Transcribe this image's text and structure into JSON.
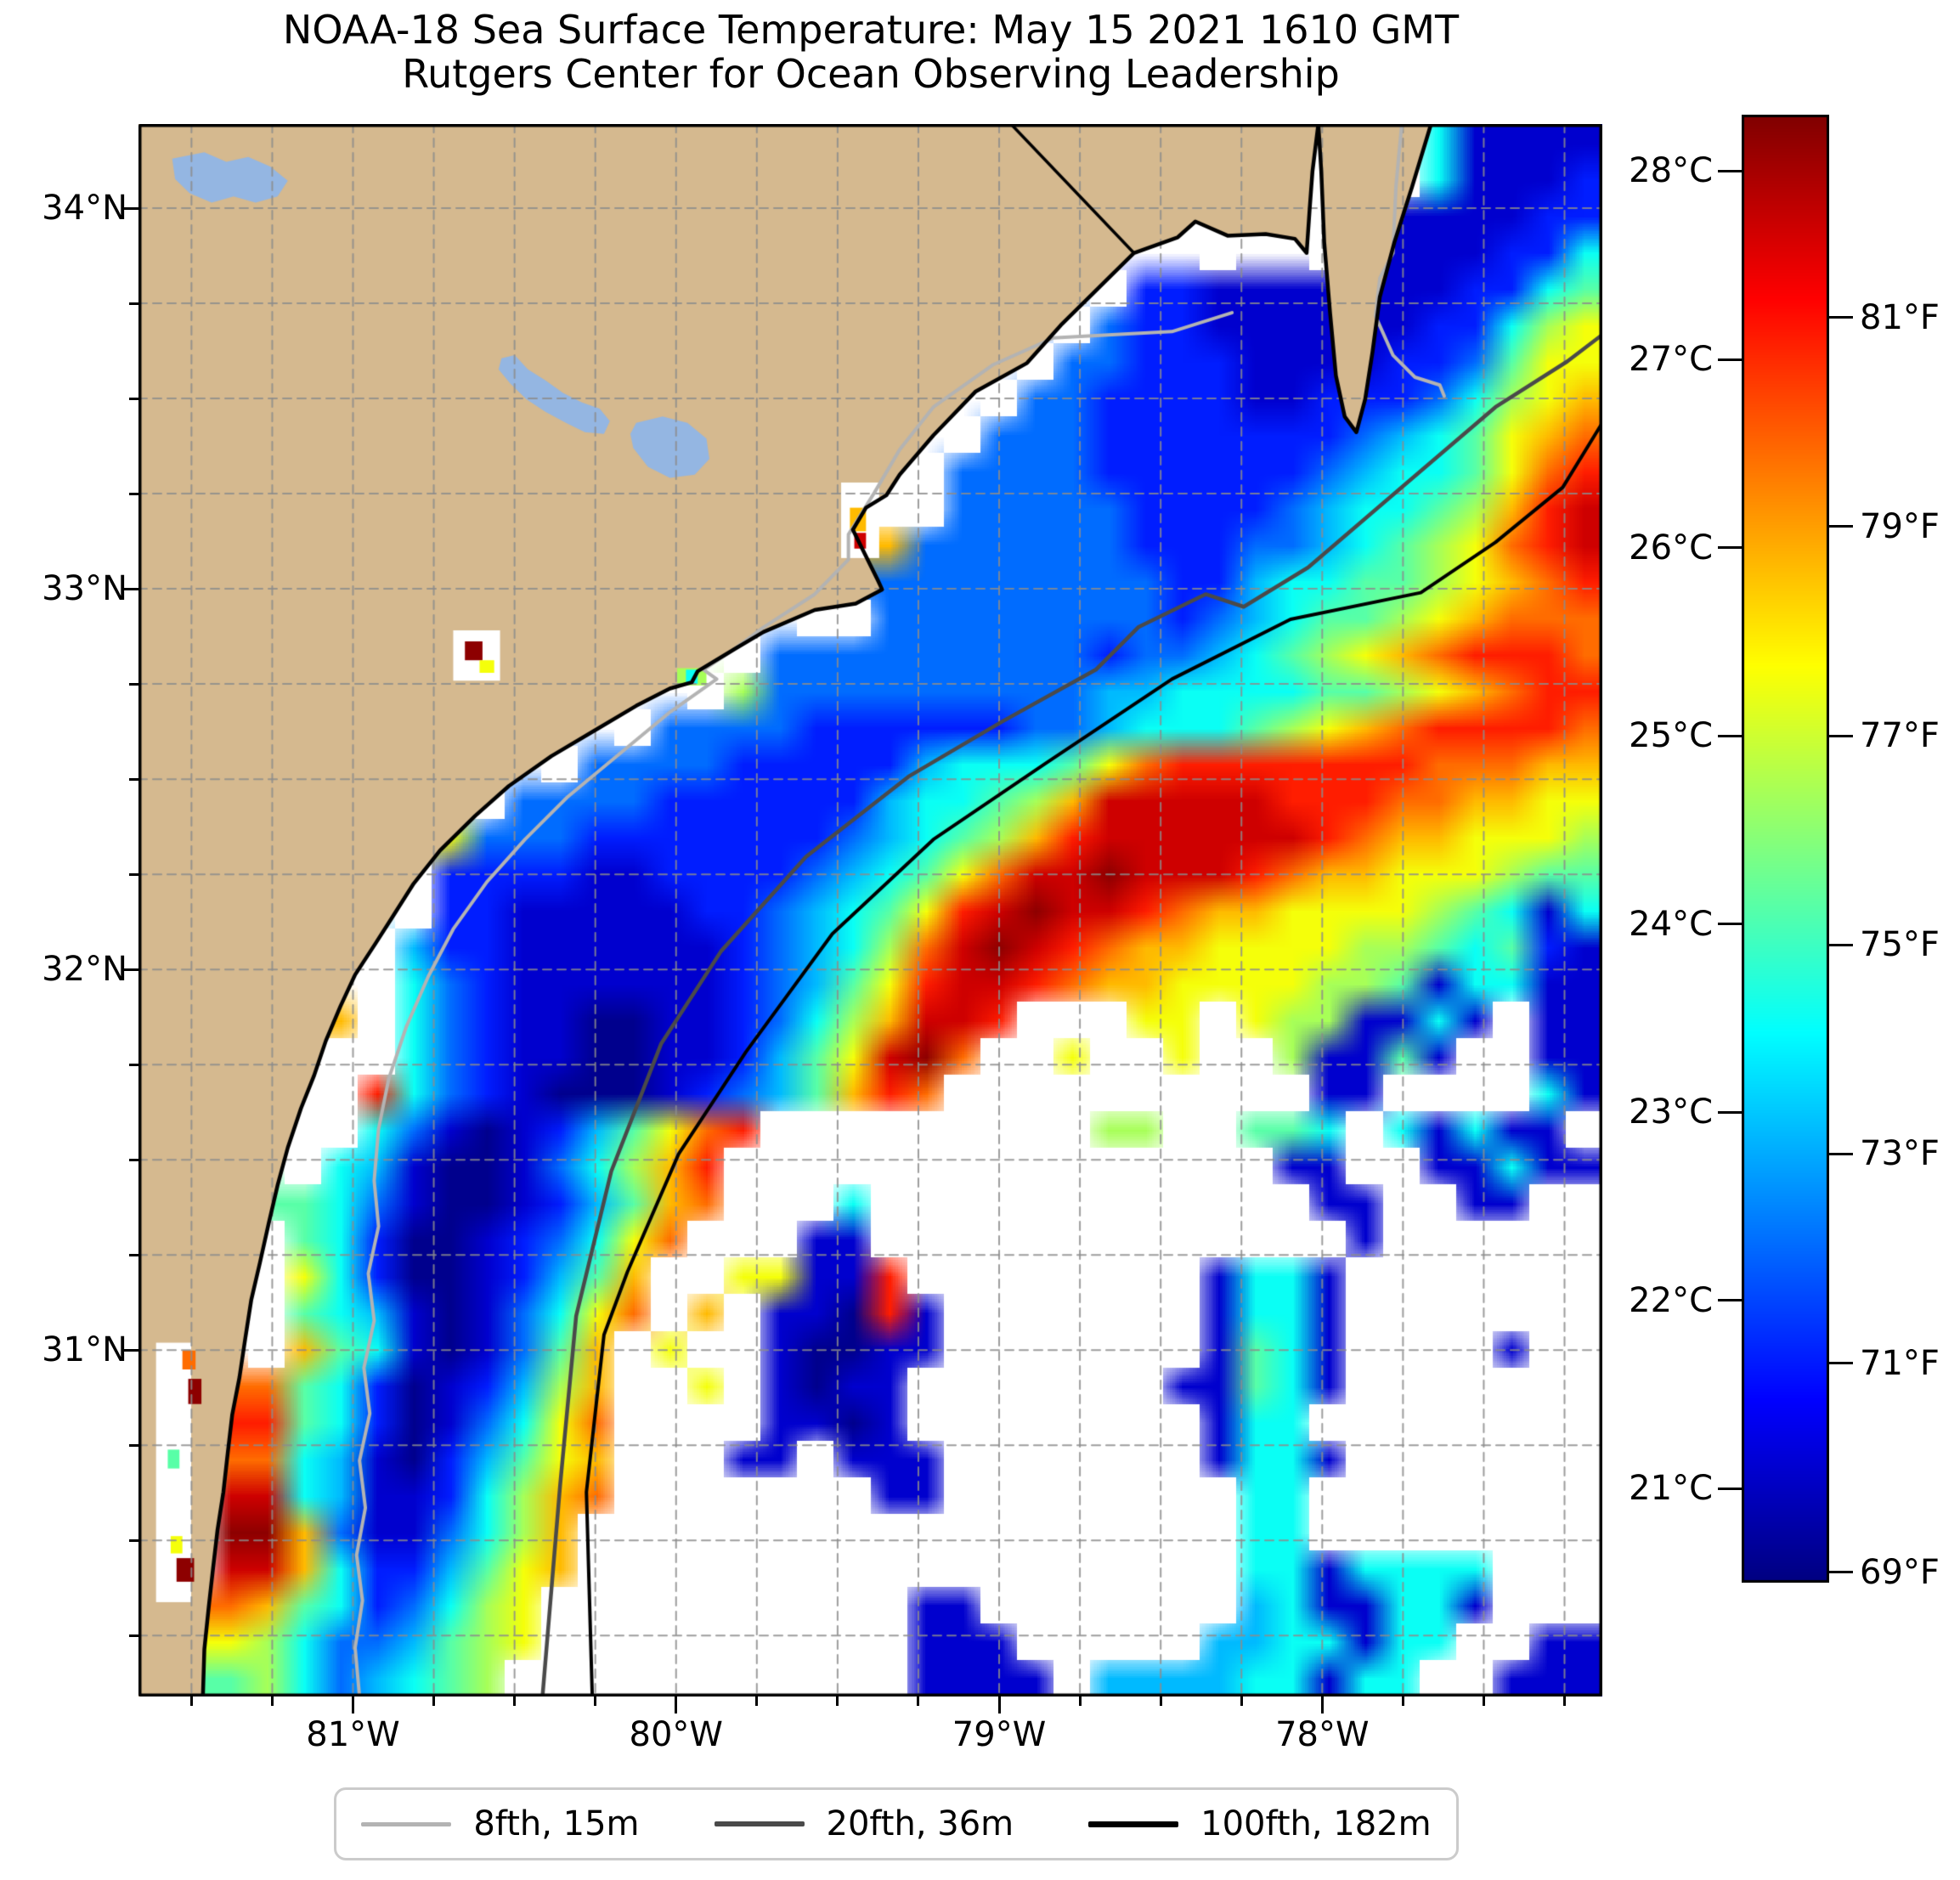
{
  "chart_data": {
    "type": "heatmap",
    "title": "NOAA-18 Sea Surface Temperature: May 15 2021 1610 GMT",
    "subtitle": "Rutgers Center for Ocean Observing Leadership",
    "x_axis": {
      "range_lon_w": [
        81.664,
        77.133
      ],
      "minor_step": 0.25,
      "ticks": [
        {
          "lon": 81,
          "label": "81°W"
        },
        {
          "lon": 80,
          "label": "80°W"
        },
        {
          "lon": 79,
          "label": "79°W"
        },
        {
          "lon": 78,
          "label": "78°W"
        }
      ]
    },
    "y_axis": {
      "range_lat_n": [
        30.09,
        34.221
      ],
      "minor_step": 0.25,
      "ticks": [
        {
          "lat": 34,
          "label": "34°N"
        },
        {
          "lat": 33,
          "label": "33°N"
        },
        {
          "lat": 32,
          "label": "32°N"
        },
        {
          "lat": 31,
          "label": "31°N"
        }
      ]
    },
    "colorbar": {
      "colormap": "jet",
      "range_c": [
        20.5,
        28.3
      ],
      "c_ticks": [
        {
          "c": 28,
          "label": "28°C"
        },
        {
          "c": 27,
          "label": "27°C"
        },
        {
          "c": 26,
          "label": "26°C"
        },
        {
          "c": 25,
          "label": "25°C"
        },
        {
          "c": 24,
          "label": "24°C"
        },
        {
          "c": 23,
          "label": "23°C"
        },
        {
          "c": 22,
          "label": "22°C"
        },
        {
          "c": 21,
          "label": "21°C"
        }
      ],
      "f_ticks": [
        {
          "f": 81,
          "label": "81°F"
        },
        {
          "f": 79,
          "label": "79°F"
        },
        {
          "f": 77,
          "label": "77°F"
        },
        {
          "f": 75,
          "label": "75°F"
        },
        {
          "f": 73,
          "label": "73°F"
        },
        {
          "f": 71,
          "label": "71°F"
        },
        {
          "f": 69,
          "label": "69°F"
        }
      ]
    },
    "legend": {
      "items": [
        {
          "label": "8fth, 15m",
          "color": "#b3b3b3",
          "thickness": 5
        },
        {
          "label": "20fth, 36m",
          "color": "#4a4a4a",
          "thickness": 6
        },
        {
          "label": "100fth, 182m",
          "color": "#000000",
          "thickness": 7
        }
      ]
    },
    "map_colors": {
      "land": "#d5b98f",
      "lake": "#94b6e2",
      "cloud": "#ffffff",
      "gridline": "#8c8c8c",
      "coast": "#000000",
      "contour_8fth": "#b3b3b3",
      "contour_20fth": "#4a4a4a",
      "contour_100fth": "#000000"
    },
    "sst_grid": {
      "cols": 40,
      "rows": 43,
      "codes": {
        "0": 20.6,
        "1": 21.1,
        "2": 21.7,
        "3": 22.3,
        "4": 22.9,
        "5": 23.5,
        "6": 24.1,
        "7": 24.7,
        "8": 25.3,
        "9": 25.9,
        "a": 26.5,
        "b": 27.1,
        "c": 27.7,
        "d": 28.2
      },
      "legend_codes": {
        "L": "land",
        "W": "cloud/no-data"
      },
      "rows_data": [
        "LLLLLLLLLLLLLLLLLLLLLLLLLLLLLLLLWLW51111",
        "LLLLLLLLLLLLLLLLLLLLLLLLLLLLLLLLWLW51112",
        "LLLLLLLLLLLLLLLLLLLLLLLLLLLLLLLLWL111122",
        "LLLLLLLLLLLLLLLLLLLLLLLLLLLLLWLLW1111225",
        "LLLLLLLLLLLLLLLLLLLLLLLLLLW2211111112256",
        "LLLLLLLLLLLLLLLLLLLLLLLLLW32211111122578",
        "LLLLLLLLLLLLLLLLLLLLLLLLW332221111223688",
        "LLLLLLLLLLLLLLLLLLLLLLLW3322221122235789",
        "LLLLLLLLLLLLLLLLLLLLLLW3332222222345689a",
        "LLLLLLLLLLLLLLLLLLLLLW3333222222345568ab",
        "LLLLLLLLLLLLLLLLLLLLWW3333322223455679bc",
        "LLLLLLLLLLLLLLLLLLLL93333332223345678abc",
        "LLLLLLLLLLLLLLLLLLLL333333332245566789ab",
        "LLLLLLLLLLLLLLLLLLWW33333333234566789aaa",
        "LLLLLLLLLWdLLLLLW333333333233456789abbba",
        "LLLLLLLLLLLLLLLW733333333344555566789abb",
        "LLLLLLLLLLLLLW33332222223345556789abbbba",
        "LLLLLLLLLLLW333322222455568abbbbbbbaaa99",
        "LLLLLLLLLW3333222222455679cccccbbbaa9988",
        "LLLLLLLL83332222222345679bccccccba998887",
        "LLLLLLLW222211222234568accdcccba99888766",
        "LLLLLLLW22111112234568bcdccba99888876515",
        "LLLLLLW42211111123457acdcba9988887765621",
        "LLLLLLW532111111234",
        "LLLLL9W53211001123579ccbWWW88W8771151W11",
        "LdLLLWW5321100112468cdaWW8WW8WW71161WW11",
        "LLLLLWb5321000123469baWWWWWWWWWW11WWWW51",
        "LLLLWW531012468abWWWWWWWWW77WW665W51511W",
        "LLLLW5410013579bWWWWWWWWWWWWWWW11WW11511",
        "LLLL65310012469aWWW5WWWWWWWWWWWW11WW11WW",
        "LLLW6520012358aWWW11WWWWWWWWWWWWW1WWWWWW",
        "LLLW8520012469WW8811bWWWWWWWW1551WWWWWWW",
        "LLLW654101358aW9W110b1WWWWWWW1551WWWWWWW",
        "LLLW965101369W8WW10011WWWWWWW1651WWWW1WW",
        "LdLa652012479WW8W1011WWWWWWW11651WWWWWWW",
        "LdLb65201358aWWWW1101WWWWWWWW155WWWWWWWW",
        "L6La541024689WWW11W111WWWWWWW1551WWWWWWW",
        "LWLc54112579aWWWWWWW11WWWWWWWW55WWWWWWWW",
        "LWLd93113579WWWWWWWWWWWWWWWWWW55WWWWWWWW",
        "LWLc95224689WWWWWWWWWWWWWWWWWW5515555WWW",
        "LLa96523578WWWWWWWWWW11WWWWWWW4511551WWW",
        "LL875334678WWWWWWWWWW111WWWWW4455155WW11",
        "LL67534567WWWWWWWWWWW1111W444455155WW111"
      ],
      "row23_tail": "68bccba99888877615511"
    },
    "overlays": {
      "coastline_main": [
        [
          0.806,
          0.0
        ],
        [
          0.802,
          0.03
        ],
        [
          0.8,
          0.055
        ],
        [
          0.798,
          0.082
        ],
        [
          0.79,
          0.073
        ],
        [
          0.77,
          0.07
        ],
        [
          0.744,
          0.071
        ],
        [
          0.722,
          0.062
        ],
        [
          0.71,
          0.072
        ],
        [
          0.68,
          0.082
        ],
        [
          0.655,
          0.105
        ],
        [
          0.63,
          0.128
        ],
        [
          0.607,
          0.152
        ],
        [
          0.572,
          0.17
        ],
        [
          0.543,
          0.198
        ],
        [
          0.52,
          0.223
        ],
        [
          0.511,
          0.236
        ],
        [
          0.497,
          0.244
        ],
        [
          0.488,
          0.258
        ],
        [
          0.505,
          0.29
        ],
        [
          0.508,
          0.296
        ],
        [
          0.49,
          0.305
        ],
        [
          0.462,
          0.309
        ],
        [
          0.427,
          0.323
        ],
        [
          0.407,
          0.334
        ],
        [
          0.382,
          0.348
        ],
        [
          0.378,
          0.355
        ],
        [
          0.363,
          0.359
        ],
        [
          0.34,
          0.37
        ],
        [
          0.311,
          0.386
        ],
        [
          0.282,
          0.402
        ],
        [
          0.253,
          0.421
        ],
        [
          0.23,
          0.44
        ],
        [
          0.206,
          0.462
        ],
        [
          0.188,
          0.483
        ],
        [
          0.173,
          0.505
        ],
        [
          0.162,
          0.521
        ],
        [
          0.148,
          0.541
        ],
        [
          0.138,
          0.561
        ],
        [
          0.128,
          0.583
        ],
        [
          0.12,
          0.605
        ],
        [
          0.111,
          0.626
        ],
        [
          0.102,
          0.651
        ],
        [
          0.095,
          0.675
        ],
        [
          0.089,
          0.699
        ],
        [
          0.083,
          0.724
        ],
        [
          0.077,
          0.748
        ],
        [
          0.073,
          0.772
        ],
        [
          0.069,
          0.797
        ],
        [
          0.064,
          0.821
        ],
        [
          0.061,
          0.845
        ],
        [
          0.058,
          0.87
        ],
        [
          0.054,
          0.894
        ],
        [
          0.051,
          0.918
        ],
        [
          0.048,
          0.943
        ],
        [
          0.045,
          0.97
        ],
        [
          0.044,
          1.0
        ]
      ],
      "cape_peninsula": [
        [
          0.883,
          0.0
        ],
        [
          0.87,
          0.04
        ],
        [
          0.858,
          0.075
        ],
        [
          0.848,
          0.11
        ],
        [
          0.843,
          0.145
        ],
        [
          0.838,
          0.175
        ],
        [
          0.832,
          0.196
        ],
        [
          0.824,
          0.186
        ],
        [
          0.818,
          0.16
        ],
        [
          0.814,
          0.12
        ],
        [
          0.81,
          0.075
        ],
        [
          0.808,
          0.03
        ],
        [
          0.806,
          0.0
        ]
      ],
      "state_line": [
        [
          0.596,
          0.0
        ],
        [
          0.68,
          0.082
        ]
      ],
      "contour_8fth_hook": [
        [
          0.863,
          0.0
        ],
        [
          0.859,
          0.04
        ],
        [
          0.857,
          0.082
        ],
        [
          0.848,
          0.098
        ],
        [
          0.845,
          0.122
        ],
        [
          0.857,
          0.147
        ],
        [
          0.872,
          0.161
        ],
        [
          0.889,
          0.166
        ],
        [
          0.892,
          0.173
        ]
      ],
      "contour_8fth": [
        [
          0.747,
          0.12
        ],
        [
          0.706,
          0.132
        ],
        [
          0.665,
          0.134
        ],
        [
          0.625,
          0.136
        ],
        [
          0.584,
          0.153
        ],
        [
          0.543,
          0.18
        ],
        [
          0.52,
          0.207
        ],
        [
          0.503,
          0.234
        ],
        [
          0.485,
          0.261
        ],
        [
          0.485,
          0.277
        ],
        [
          0.462,
          0.299
        ],
        [
          0.427,
          0.32
        ],
        [
          0.404,
          0.336
        ],
        [
          0.386,
          0.347
        ],
        [
          0.395,
          0.353
        ],
        [
          0.363,
          0.374
        ],
        [
          0.328,
          0.401
        ],
        [
          0.293,
          0.428
        ],
        [
          0.264,
          0.455
        ],
        [
          0.238,
          0.482
        ],
        [
          0.215,
          0.512
        ],
        [
          0.198,
          0.542
        ],
        [
          0.183,
          0.574
        ],
        [
          0.171,
          0.607
        ],
        [
          0.164,
          0.639
        ],
        [
          0.161,
          0.672
        ],
        [
          0.164,
          0.701
        ],
        [
          0.157,
          0.731
        ],
        [
          0.161,
          0.761
        ],
        [
          0.154,
          0.791
        ],
        [
          0.158,
          0.82
        ],
        [
          0.151,
          0.85
        ],
        [
          0.155,
          0.88
        ],
        [
          0.149,
          0.91
        ],
        [
          0.153,
          0.939
        ],
        [
          0.148,
          0.969
        ],
        [
          0.151,
          1.0
        ]
      ],
      "contour_20fth": [
        [
          0.276,
          1.0
        ],
        [
          0.288,
          0.866
        ],
        [
          0.299,
          0.758
        ],
        [
          0.323,
          0.666
        ],
        [
          0.357,
          0.585
        ],
        [
          0.398,
          0.526
        ],
        [
          0.456,
          0.466
        ],
        [
          0.526,
          0.415
        ],
        [
          0.59,
          0.38
        ],
        [
          0.654,
          0.347
        ],
        [
          0.683,
          0.32
        ],
        [
          0.729,
          0.299
        ],
        [
          0.755,
          0.307
        ],
        [
          0.799,
          0.282
        ],
        [
          0.863,
          0.231
        ],
        [
          0.927,
          0.18
        ],
        [
          0.976,
          0.151
        ],
        [
          1.0,
          0.134
        ]
      ],
      "contour_100fth": [
        [
          0.31,
          1.0
        ],
        [
          0.306,
          0.87
        ],
        [
          0.318,
          0.77
        ],
        [
          0.334,
          0.73
        ],
        [
          0.369,
          0.655
        ],
        [
          0.415,
          0.59
        ],
        [
          0.474,
          0.515
        ],
        [
          0.543,
          0.455
        ],
        [
          0.619,
          0.407
        ],
        [
          0.706,
          0.353
        ],
        [
          0.787,
          0.315
        ],
        [
          0.876,
          0.298
        ],
        [
          0.927,
          0.266
        ],
        [
          0.973,
          0.231
        ],
        [
          1.0,
          0.19
        ]
      ],
      "lakes": [
        [
          [
            0.023,
            0.022
          ],
          [
            0.045,
            0.018
          ],
          [
            0.06,
            0.024
          ],
          [
            0.075,
            0.021
          ],
          [
            0.09,
            0.027
          ],
          [
            0.102,
            0.036
          ],
          [
            0.095,
            0.046
          ],
          [
            0.08,
            0.05
          ],
          [
            0.065,
            0.046
          ],
          [
            0.05,
            0.05
          ],
          [
            0.035,
            0.044
          ],
          [
            0.025,
            0.035
          ]
        ],
        [
          [
            0.248,
            0.149
          ],
          [
            0.257,
            0.147
          ],
          [
            0.266,
            0.156
          ],
          [
            0.278,
            0.163
          ],
          [
            0.29,
            0.171
          ],
          [
            0.303,
            0.177
          ],
          [
            0.315,
            0.181
          ],
          [
            0.322,
            0.189
          ],
          [
            0.318,
            0.197
          ],
          [
            0.305,
            0.196
          ],
          [
            0.292,
            0.19
          ],
          [
            0.278,
            0.183
          ],
          [
            0.265,
            0.175
          ],
          [
            0.254,
            0.165
          ],
          [
            0.246,
            0.156
          ]
        ],
        [
          [
            0.34,
            0.19
          ],
          [
            0.358,
            0.186
          ],
          [
            0.375,
            0.19
          ],
          [
            0.388,
            0.2
          ],
          [
            0.39,
            0.213
          ],
          [
            0.38,
            0.223
          ],
          [
            0.363,
            0.225
          ],
          [
            0.348,
            0.218
          ],
          [
            0.338,
            0.206
          ],
          [
            0.336,
            0.197
          ]
        ]
      ],
      "inland_patches": [
        {
          "u": 0.012,
          "v": 0.775,
          "w": 0.024,
          "h": 0.165,
          "code": "W"
        },
        {
          "u": 0.03,
          "v": 0.78,
          "w": 0.009,
          "h": 0.012,
          "code": "a"
        },
        {
          "u": 0.034,
          "v": 0.798,
          "w": 0.009,
          "h": 0.016,
          "code": "d"
        },
        {
          "u": 0.022,
          "v": 0.898,
          "w": 0.008,
          "h": 0.011,
          "code": "8"
        },
        {
          "u": 0.026,
          "v": 0.912,
          "w": 0.012,
          "h": 0.015,
          "code": "d"
        },
        {
          "u": 0.02,
          "v": 0.843,
          "w": 0.008,
          "h": 0.012,
          "code": "6"
        },
        {
          "u": 0.215,
          "v": 0.322,
          "w": 0.032,
          "h": 0.032,
          "code": "W"
        },
        {
          "u": 0.223,
          "v": 0.329,
          "w": 0.012,
          "h": 0.012,
          "code": "d"
        },
        {
          "u": 0.233,
          "v": 0.341,
          "w": 0.01,
          "h": 0.008,
          "code": "8"
        },
        {
          "u": 0.48,
          "v": 0.228,
          "w": 0.026,
          "h": 0.048,
          "code": "W"
        },
        {
          "u": 0.486,
          "v": 0.244,
          "w": 0.011,
          "h": 0.015,
          "code": "9"
        },
        {
          "u": 0.489,
          "v": 0.26,
          "w": 0.008,
          "h": 0.01,
          "code": "c"
        },
        {
          "u": 0.368,
          "v": 0.346,
          "w": 0.02,
          "h": 0.011,
          "code": "7"
        },
        {
          "u": 0.374,
          "v": 0.347,
          "w": 0.008,
          "h": 0.009,
          "code": "5"
        }
      ]
    }
  }
}
